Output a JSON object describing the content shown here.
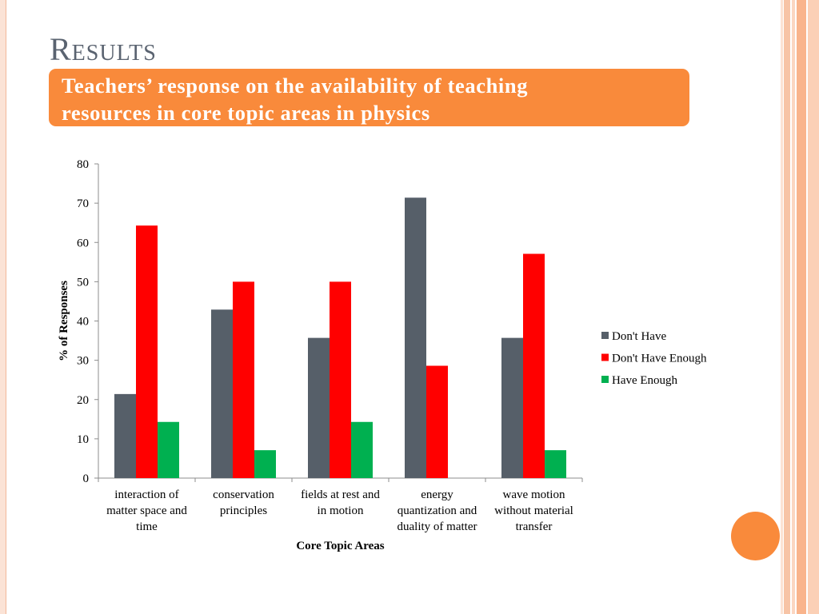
{
  "slide": {
    "title": "Results",
    "banner_lines": [
      "Teachers’ response on the availability of teaching",
      "resources in core topic areas in physics"
    ],
    "colors": {
      "accent": "#f98a3b",
      "title": "#5a6370"
    }
  },
  "chart_data": {
    "type": "bar",
    "categories": [
      [
        "interaction of",
        "matter space and",
        "time"
      ],
      [
        "conservation",
        "principles"
      ],
      [
        "fields at rest and",
        "in motion"
      ],
      [
        "energy",
        "quantization and",
        "duality of matter"
      ],
      [
        "wave motion",
        "without material",
        "transfer"
      ]
    ],
    "series": [
      {
        "name": "Don't Have",
        "color": "#565f69",
        "values": [
          21.4,
          42.9,
          35.7,
          71.4,
          35.7
        ]
      },
      {
        "name": "Don't Have Enough",
        "color": "#ff0000",
        "values": [
          64.3,
          50.0,
          50.0,
          28.6,
          57.1
        ]
      },
      {
        "name": "Have Enough",
        "color": "#00b050",
        "values": [
          14.3,
          7.1,
          14.3,
          0,
          7.1
        ]
      }
    ],
    "xlabel": "Core Topic Areas",
    "ylabel": "% of Responses",
    "ylim": [
      0,
      80
    ],
    "yticks": [
      0,
      10,
      20,
      30,
      40,
      50,
      60,
      70,
      80
    ],
    "legend_position": "right",
    "grid": false
  }
}
